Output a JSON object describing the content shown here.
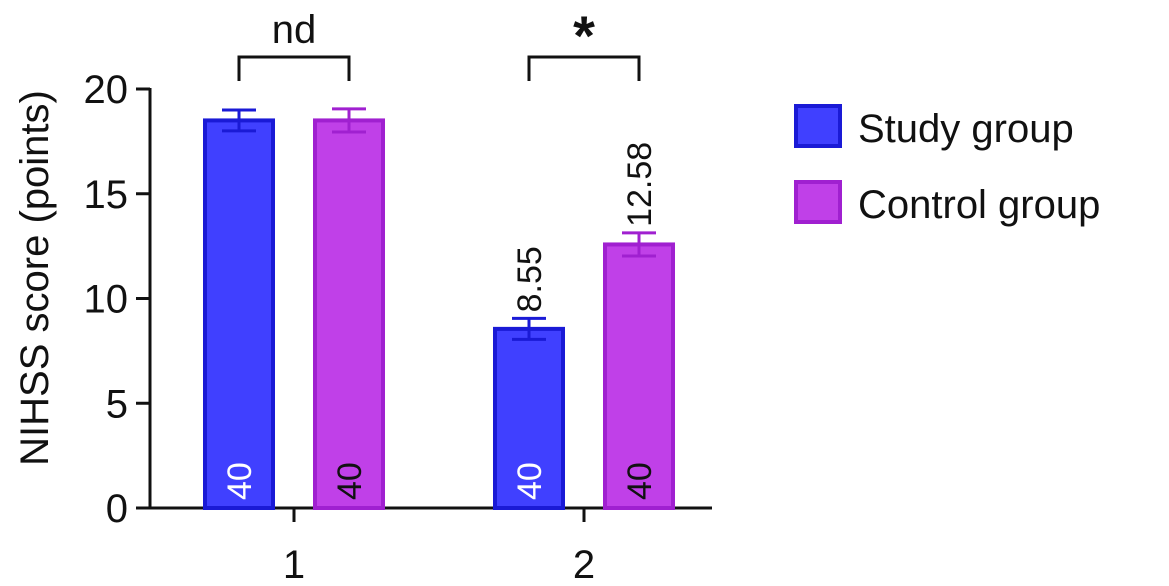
{
  "chart_data": {
    "type": "bar",
    "categories": [
      "1",
      "2"
    ],
    "ylabel": "NIHSS score (points)",
    "xlabel": "",
    "ylim": [
      0,
      20
    ],
    "yticks": [
      "0",
      "5",
      "10",
      "15",
      "20"
    ],
    "series": [
      {
        "name": "Study group",
        "color": "#4040ff",
        "stroke": "#1a1ad6",
        "values": [
          18.5,
          8.55
        ],
        "error": [
          0.5,
          0.5
        ],
        "n_labels": [
          "40",
          "40"
        ],
        "value_labels": [
          "",
          "8.55"
        ],
        "n_label_color": "#ffffff"
      },
      {
        "name": "Control group",
        "color": "#c040e8",
        "stroke": "#a020d0",
        "values": [
          18.5,
          12.58
        ],
        "error": [
          0.55,
          0.55
        ],
        "n_labels": [
          "40",
          "40"
        ],
        "value_labels": [
          "",
          "12.58"
        ],
        "n_label_color": "#111111"
      }
    ],
    "significance": [
      {
        "category": "1",
        "label": "nd"
      },
      {
        "category": "2",
        "label": "*"
      }
    ],
    "legend_position": "right"
  }
}
